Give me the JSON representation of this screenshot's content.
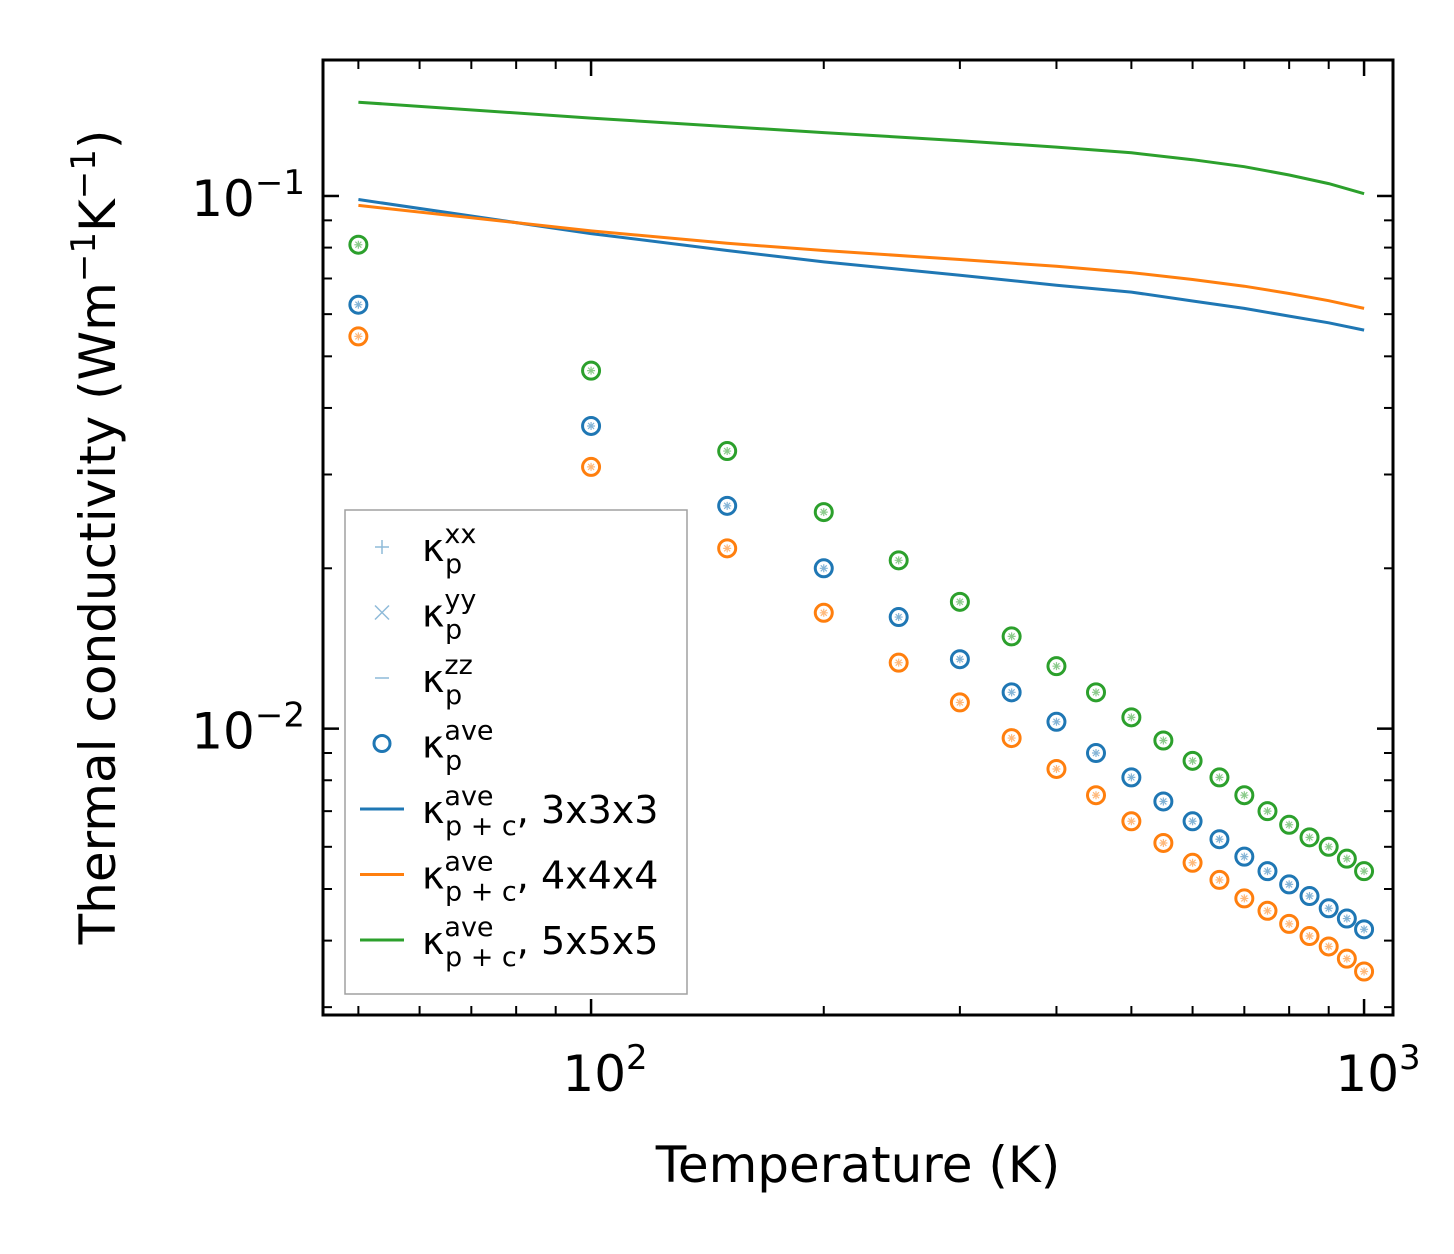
{
  "chart_data": {
    "type": "scatter",
    "xscale": "log",
    "yscale": "log",
    "xlabel": "Temperature (K)",
    "ylabel": "Thermal conductivity (Wm⁻¹K⁻¹)",
    "ylabel_parts": {
      "pre": "Thermal conductivity (Wm",
      "exp1": "−1",
      "mid": "K",
      "exp2": "−1",
      "post": ")"
    },
    "xlim": [
      45,
      1090
    ],
    "ylim": [
      0.0029,
      0.18
    ],
    "xticks": [
      {
        "value": 100,
        "base": "10",
        "exp": "2"
      },
      {
        "value": 1000,
        "base": "10",
        "exp": "3"
      }
    ],
    "yticks": [
      {
        "value": 0.01,
        "base": "10",
        "exp": "−2"
      },
      {
        "value": 0.1,
        "base": "10",
        "exp": "−1"
      }
    ],
    "temperatures": [
      50,
      100,
      150,
      200,
      250,
      300,
      350,
      400,
      450,
      500,
      550,
      600,
      650,
      700,
      750,
      800,
      850,
      900,
      950,
      1000
    ],
    "point_series": [
      {
        "name": "3x3x3",
        "color": "#1f77b4",
        "values": [
          0.0625,
          0.037,
          0.0262,
          0.02,
          0.0162,
          0.0135,
          0.0117,
          0.0103,
          0.009,
          0.0081,
          0.0073,
          0.0067,
          0.0062,
          0.00575,
          0.0054,
          0.0051,
          0.00485,
          0.0046,
          0.0044,
          0.0042
        ]
      },
      {
        "name": "4x4x4",
        "color": "#ff7f0e",
        "values": [
          0.0545,
          0.031,
          0.0218,
          0.0165,
          0.0133,
          0.0112,
          0.0096,
          0.0084,
          0.0075,
          0.0067,
          0.0061,
          0.0056,
          0.0052,
          0.0048,
          0.00455,
          0.0043,
          0.00408,
          0.0039,
          0.0037,
          0.0035
        ]
      },
      {
        "name": "5x5x5",
        "color": "#2ca02c",
        "values": [
          0.081,
          0.047,
          0.0332,
          0.0255,
          0.0207,
          0.0173,
          0.0149,
          0.0131,
          0.0117,
          0.0105,
          0.0095,
          0.0087,
          0.0081,
          0.0075,
          0.007,
          0.0066,
          0.00625,
          0.006,
          0.0057,
          0.0054
        ]
      }
    ],
    "line_series": [
      {
        "name": "3x3x3",
        "color": "#1f77b4",
        "x": [
          50,
          100,
          150,
          200,
          300,
          400,
          500,
          600,
          700,
          800,
          900,
          1000
        ],
        "values": [
          0.0985,
          0.085,
          0.079,
          0.0752,
          0.071,
          0.068,
          0.066,
          0.0635,
          0.0615,
          0.0595,
          0.0578,
          0.056
        ]
      },
      {
        "name": "4x4x4",
        "color": "#ff7f0e",
        "x": [
          50,
          100,
          150,
          200,
          300,
          400,
          500,
          600,
          700,
          800,
          900,
          1000
        ],
        "values": [
          0.096,
          0.086,
          0.0815,
          0.079,
          0.076,
          0.0738,
          0.0718,
          0.0697,
          0.0677,
          0.0656,
          0.0636,
          0.0615
        ]
      },
      {
        "name": "5x5x5",
        "color": "#2ca02c",
        "x": [
          50,
          100,
          150,
          200,
          300,
          400,
          500,
          600,
          700,
          800,
          900,
          1000
        ],
        "values": [
          0.15,
          0.14,
          0.135,
          0.1315,
          0.127,
          0.1235,
          0.1205,
          0.117,
          0.1135,
          0.1095,
          0.1055,
          0.101
        ]
      }
    ],
    "legend": {
      "position": "lower-left",
      "entries": [
        {
          "marker": "plus",
          "color": "#1f77b4",
          "kappa": "κ",
          "sub": "p",
          "sup": "xx",
          "suffix": ""
        },
        {
          "marker": "cross",
          "color": "#1f77b4",
          "kappa": "κ",
          "sub": "p",
          "sup": "yy",
          "suffix": ""
        },
        {
          "marker": "dash",
          "color": "#1f77b4",
          "kappa": "κ",
          "sub": "p",
          "sup": "zz",
          "suffix": ""
        },
        {
          "marker": "circle",
          "color": "#1f77b4",
          "kappa": "κ",
          "sub": "p",
          "sup": "ave",
          "suffix": ""
        },
        {
          "marker": "line",
          "color": "#1f77b4",
          "kappa": "κ",
          "sub": "p + c",
          "sup": "ave",
          "suffix": ", 3x3x3"
        },
        {
          "marker": "line",
          "color": "#ff7f0e",
          "kappa": "κ",
          "sub": "p + c",
          "sup": "ave",
          "suffix": ", 4x4x4"
        },
        {
          "marker": "line",
          "color": "#2ca02c",
          "kappa": "κ",
          "sub": "p + c",
          "sup": "ave",
          "suffix": ", 5x5x5"
        }
      ]
    }
  }
}
